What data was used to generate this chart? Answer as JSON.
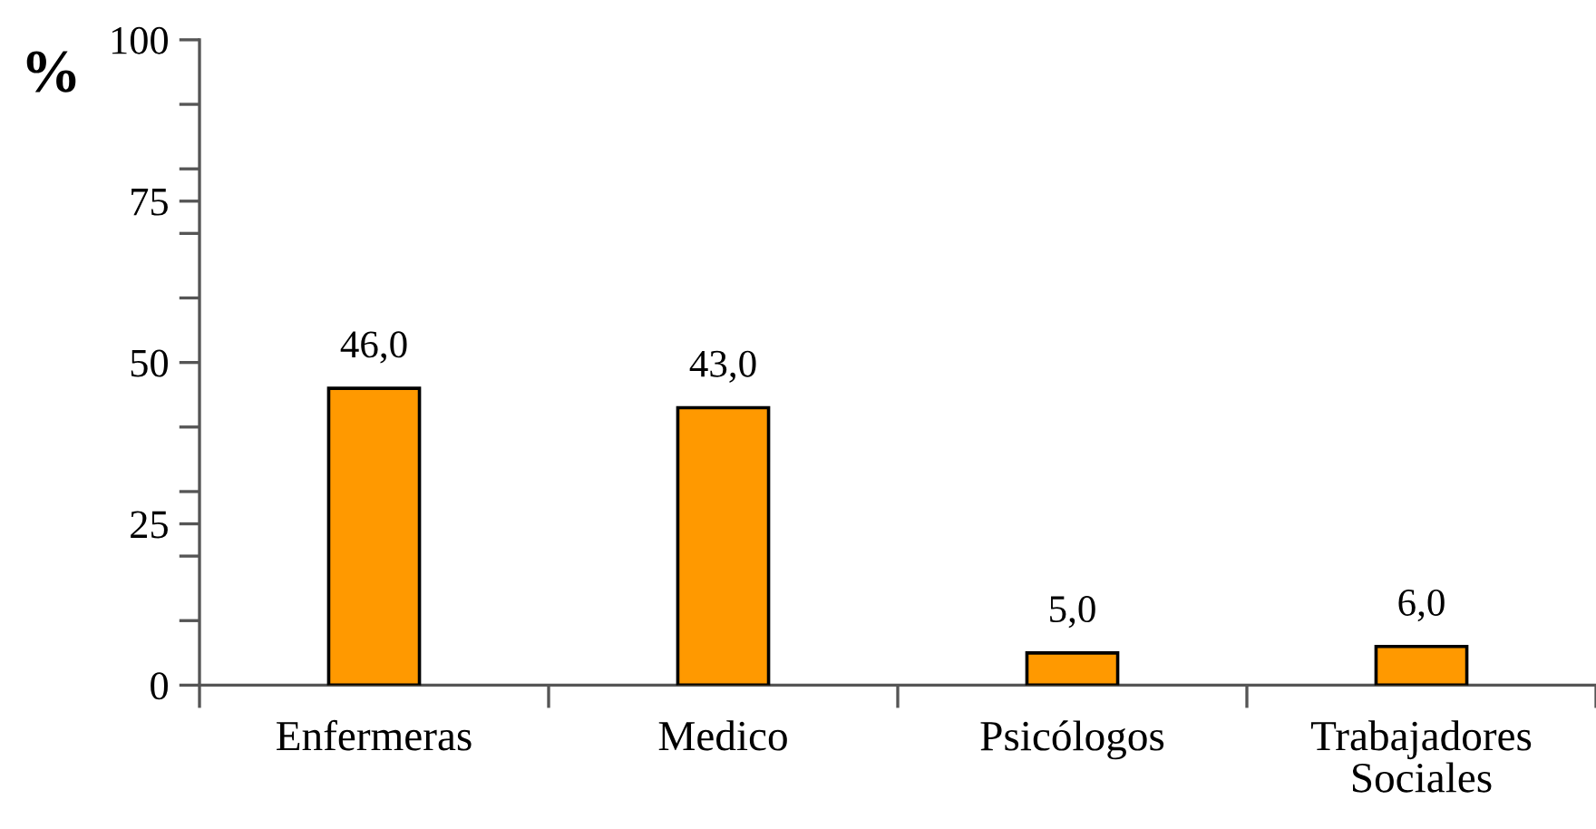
{
  "chart_data": {
    "type": "bar",
    "ylabel": "%",
    "categories": [
      "Enfermeras",
      "Medico",
      "Psicólogos",
      "Trabajadores Sociales"
    ],
    "values": [
      46,
      43,
      5,
      6
    ],
    "value_labels": [
      "46,0",
      "43,0",
      "5,0",
      "6,0"
    ],
    "color": "#ff9900",
    "ylim": [
      0,
      100
    ],
    "yticks": [
      0,
      {
        "value": 10,
        "label": null
      },
      {
        "value": 20,
        "label": null
      },
      25,
      {
        "value": 30,
        "label": null
      },
      {
        "value": 40,
        "label": null
      },
      50,
      {
        "value": 60,
        "label": null
      },
      {
        "value": 70,
        "label": null
      },
      75,
      {
        "value": 80,
        "label": null
      },
      {
        "value": 90,
        "label": null
      },
      100
    ],
    "grid": false,
    "legend": false
  }
}
